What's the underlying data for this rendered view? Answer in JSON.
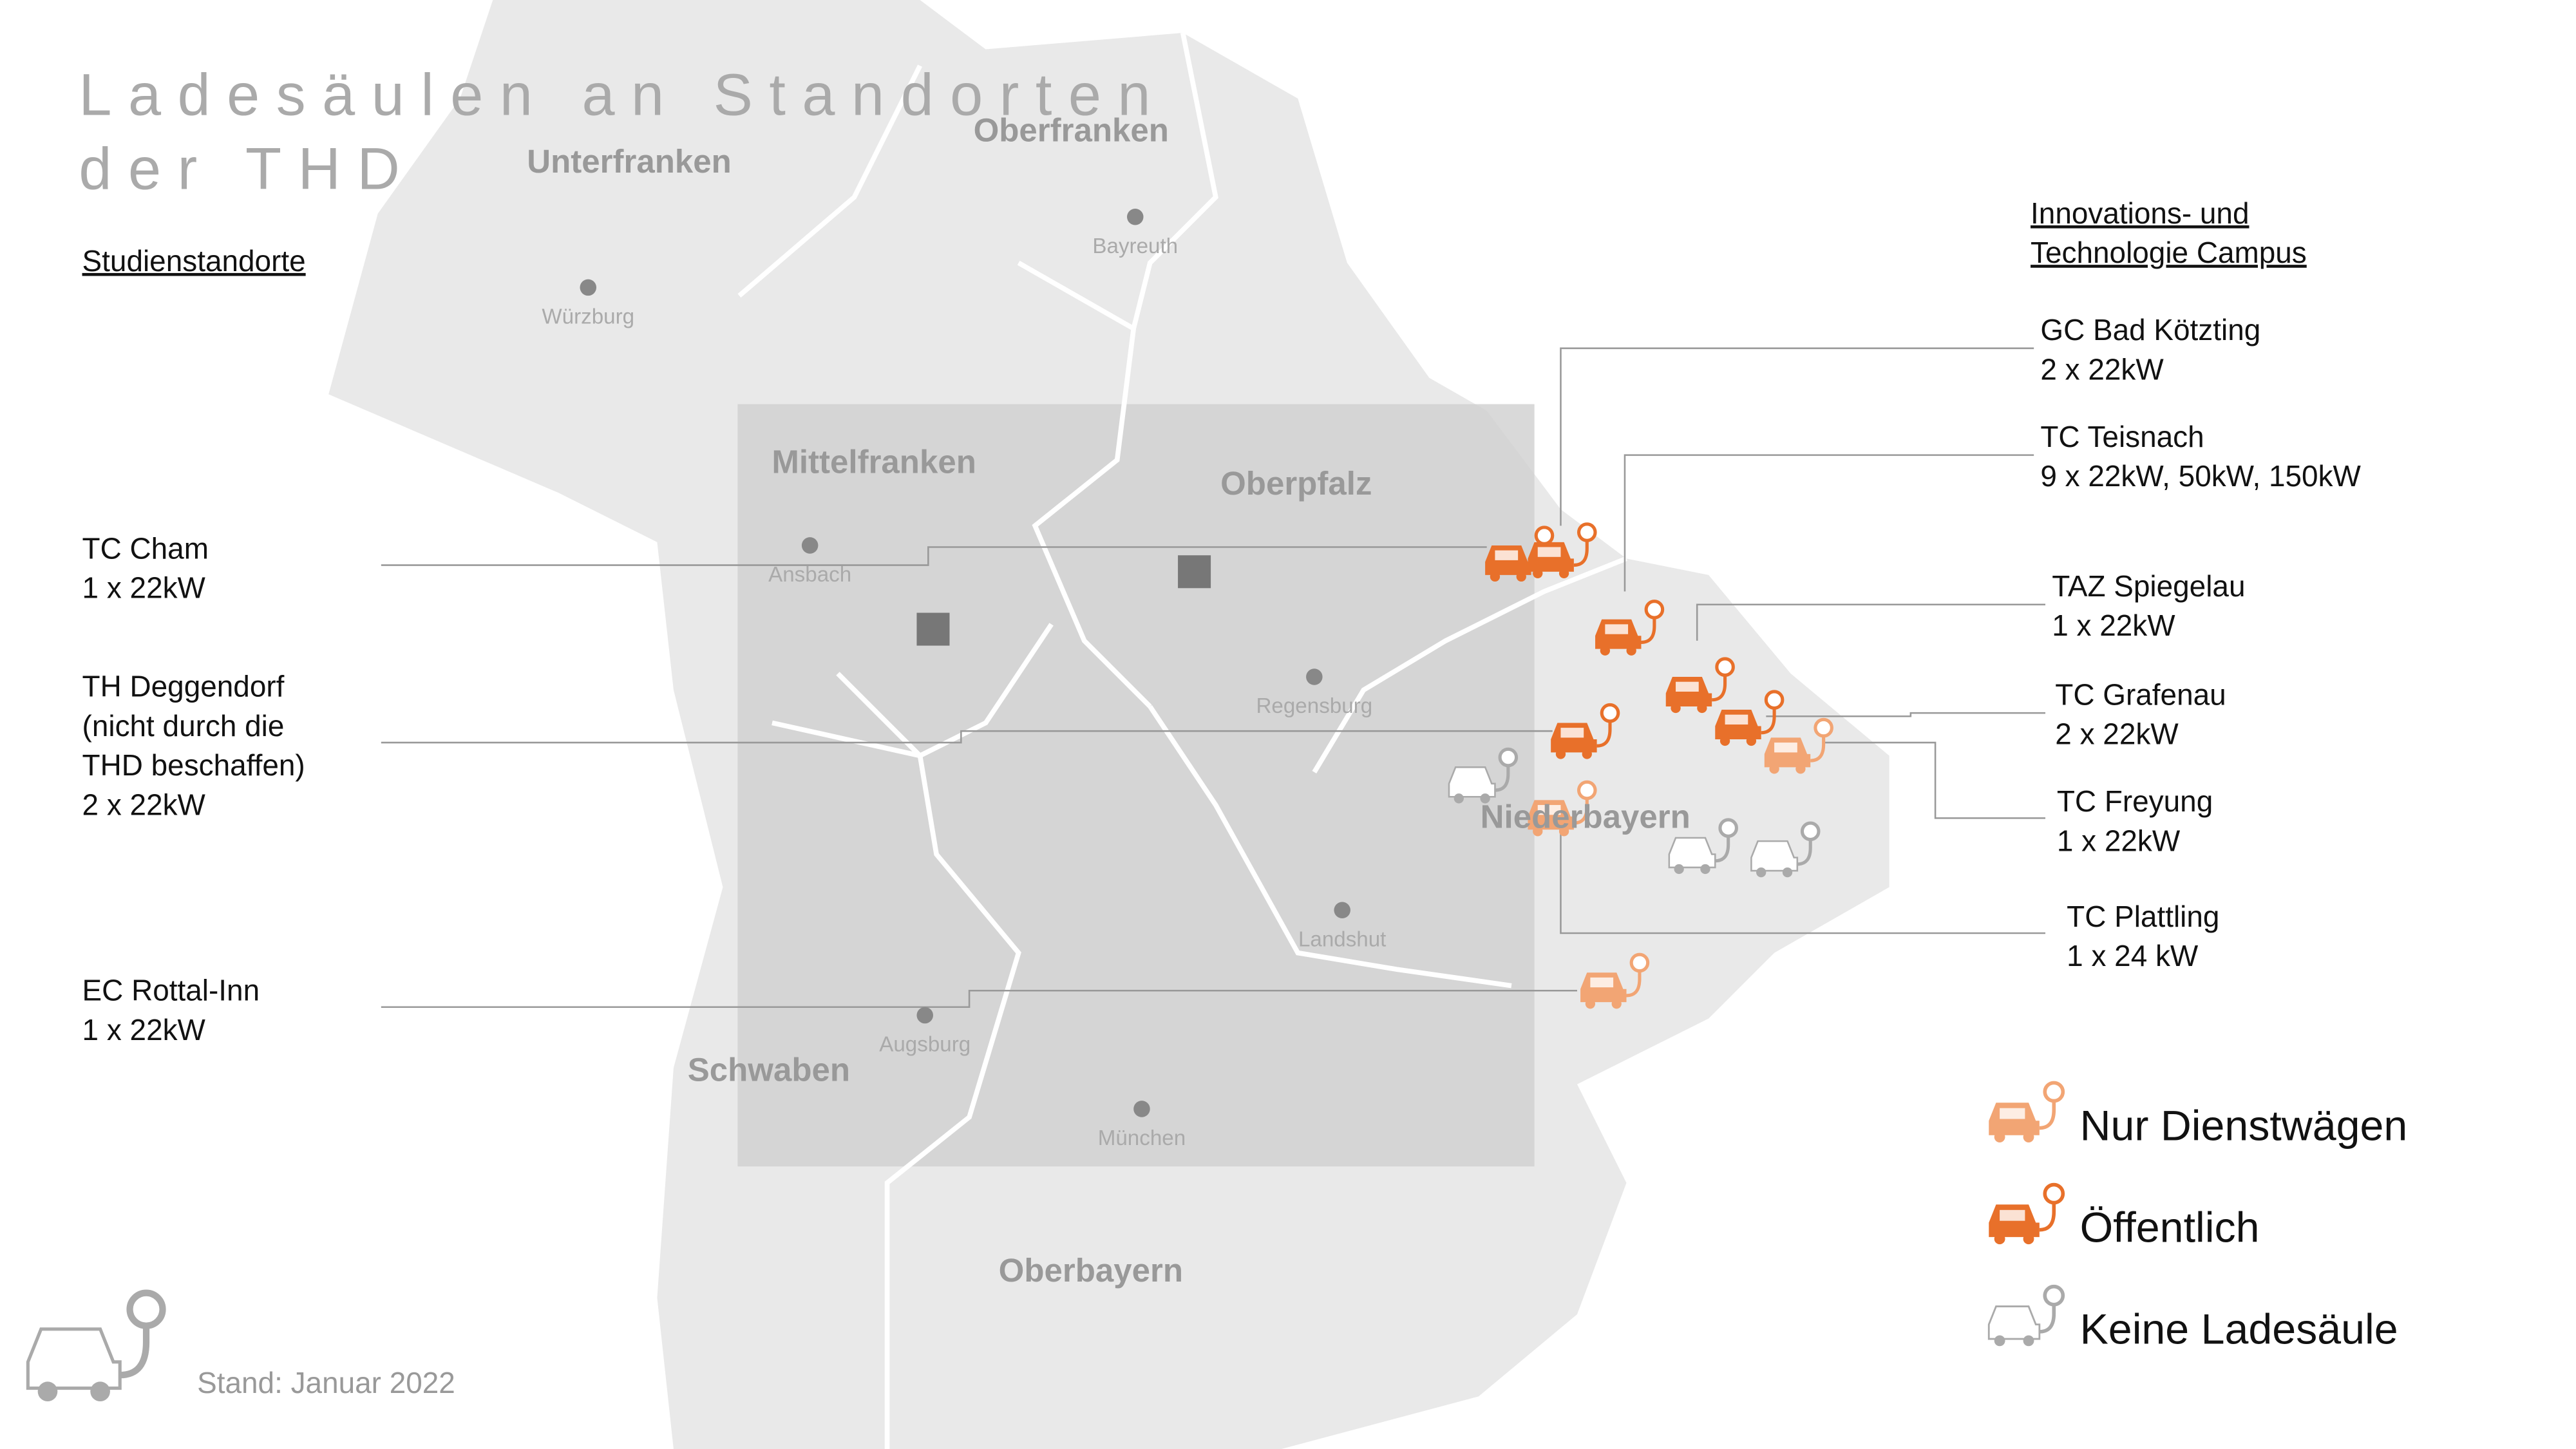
{
  "title_lines": [
    "Ladesäulen an Standorten",
    "der THD"
  ],
  "study_sites": {
    "heading": "Studienstandorte",
    "items": [
      {
        "lines": [
          "TC Cham",
          "1 x 22kW"
        ]
      },
      {
        "lines": [
          "TH Deggendorf",
          "(nicht durch die",
          "THD beschaffen)",
          "2 x 22kW"
        ]
      },
      {
        "lines": [
          "EC Rottal-Inn",
          "1 x 22kW"
        ]
      }
    ]
  },
  "campus": {
    "heading_lines": [
      "Innovations- und",
      "Technologie Campus"
    ],
    "items": [
      {
        "lines": [
          "GC Bad Kötzting",
          "2 x 22kW"
        ]
      },
      {
        "lines": [
          "TC Teisnach",
          "9 x 22kW, 50kW, 150kW"
        ]
      },
      {
        "lines": [
          "TAZ Spiegelau",
          "1 x 22kW"
        ]
      },
      {
        "lines": [
          "TC Grafenau",
          "2 x 22kW"
        ]
      },
      {
        "lines": [
          "TC Freyung",
          "1 x 22kW"
        ]
      },
      {
        "lines": [
          "TC Plattling",
          "1 x 24 kW"
        ]
      }
    ]
  },
  "regions": [
    "Unterfranken",
    "Oberfranken",
    "Mittelfranken",
    "Oberpfalz",
    "Niederbayern",
    "Schwaben",
    "Oberbayern"
  ],
  "cities": [
    "Würzburg",
    "Bayreuth",
    "Ansbach",
    "Regensburg",
    "Landshut",
    "Augsburg",
    "München"
  ],
  "legend": [
    "Nur Dienstwägen",
    "Öffentlich",
    "Keine Ladesäule"
  ],
  "footer": "Stand: Januar 2022"
}
